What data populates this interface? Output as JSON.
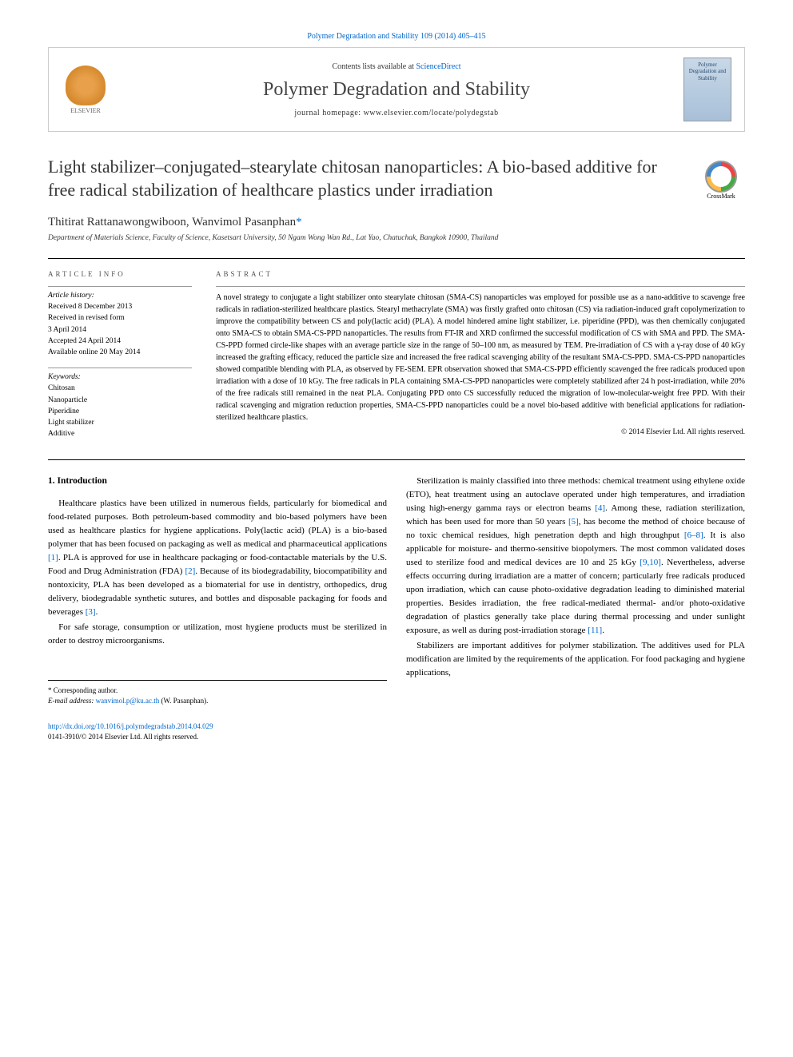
{
  "citation": "Polymer Degradation and Stability 109 (2014) 405–415",
  "masthead": {
    "contents_prefix": "Contents lists available at ",
    "contents_link": "ScienceDirect",
    "journal_name": "Polymer Degradation and Stability",
    "homepage_prefix": "journal homepage: ",
    "homepage_url": "www.elsevier.com/locate/polydegstab",
    "publisher": "ELSEVIER",
    "cover_text": "Polymer Degradation and Stability"
  },
  "crossmark": "CrossMark",
  "title": "Light stabilizer–conjugated–stearylate chitosan nanoparticles: A bio-based additive for free radical stabilization of healthcare plastics under irradiation",
  "authors_line": "Thitirat Rattanawongwiboon, Wanvimol Pasanphan",
  "corr_marker": "*",
  "affiliation": "Department of Materials Science, Faculty of Science, Kasetsart University, 50 Ngam Wong Wan Rd., Lat Yao, Chatuchak, Bangkok 10900, Thailand",
  "article_info": {
    "label": "article info",
    "history_label": "Article history:",
    "history": [
      "Received 8 December 2013",
      "Received in revised form",
      "3 April 2014",
      "Accepted 24 April 2014",
      "Available online 20 May 2014"
    ],
    "keywords_label": "Keywords:",
    "keywords": [
      "Chitosan",
      "Nanoparticle",
      "Piperidine",
      "Light stabilizer",
      "Additive"
    ]
  },
  "abstract": {
    "label": "abstract",
    "text": "A novel strategy to conjugate a light stabilizer onto stearylate chitosan (SMA-CS) nanoparticles was employed for possible use as a nano-additive to scavenge free radicals in radiation-sterilized healthcare plastics. Stearyl methacrylate (SMA) was firstly grafted onto chitosan (CS) via radiation-induced graft copolymerization to improve the compatibility between CS and poly(lactic acid) (PLA). A model hindered amine light stabilizer, i.e. piperidine (PPD), was then chemically conjugated onto SMA-CS to obtain SMA-CS-PPD nanoparticles. The results from FT-IR and XRD confirmed the successful modification of CS with SMA and PPD. The SMA-CS-PPD formed circle-like shapes with an average particle size in the range of 50–100 nm, as measured by TEM. Pre-irradiation of CS with a γ-ray dose of 40 kGy increased the grafting efficacy, reduced the particle size and increased the free radical scavenging ability of the resultant SMA-CS-PPD. SMA-CS-PPD nanoparticles showed compatible blending with PLA, as observed by FE-SEM. EPR observation showed that SMA-CS-PPD efficiently scavenged the free radicals produced upon irradiation with a dose of 10 kGy. The free radicals in PLA containing SMA-CS-PPD nanoparticles were completely stabilized after 24 h post-irradiation, while 20% of the free radicals still remained in the neat PLA. Conjugating PPD onto CS successfully reduced the migration of low-molecular-weight free PPD. With their radical scavenging and migration reduction properties, SMA-CS-PPD nanoparticles could be a novel bio-based additive with beneficial applications for radiation-sterilized healthcare plastics.",
    "copyright": "© 2014 Elsevier Ltd. All rights reserved."
  },
  "body": {
    "section1_heading": "1. Introduction",
    "para1": "Healthcare plastics have been utilized in numerous fields, particularly for biomedical and food-related purposes. Both petroleum-based commodity and bio-based polymers have been used as healthcare plastics for hygiene applications. Poly(lactic acid) (PLA) is a bio-based polymer that has been focused on packaging as well as medical and pharmaceutical applications [1]. PLA is approved for use in healthcare packaging or food-contactable materials by the U.S. Food and Drug Administration (FDA) [2]. Because of its biodegradability, biocompatibility and nontoxicity, PLA has been developed as a biomaterial for use in dentistry, orthopedics, drug delivery, biodegradable synthetic sutures, and bottles and disposable packaging for foods and beverages [3].",
    "para2": "For safe storage, consumption or utilization, most hygiene products must be sterilized in order to destroy microorganisms.",
    "para3": "Sterilization is mainly classified into three methods: chemical treatment using ethylene oxide (ETO), heat treatment using an autoclave operated under high temperatures, and irradiation using high-energy gamma rays or electron beams [4]. Among these, radiation sterilization, which has been used for more than 50 years [5], has become the method of choice because of no toxic chemical residues, high penetration depth and high throughput [6–8]. It is also applicable for moisture- and thermo-sensitive biopolymers. The most common validated doses used to sterilize food and medical devices are 10 and 25 kGy [9,10]. Nevertheless, adverse effects occurring during irradiation are a matter of concern; particularly free radicals produced upon irradiation, which can cause photo-oxidative degradation leading to diminished material properties. Besides irradiation, the free radical-mediated thermal- and/or photo-oxidative degradation of plastics generally take place during thermal processing and under sunlight exposure, as well as during post-irradiation storage [11].",
    "para4": "Stabilizers are important additives for polymer stabilization. The additives used for PLA modification are limited by the requirements of the application. For food packaging and hygiene applications,"
  },
  "footnote": {
    "corr": "* Corresponding author.",
    "email_label": "E-mail address: ",
    "email": "wanvimol.p@ku.ac.th",
    "email_suffix": " (W. Pasanphan)."
  },
  "footer": {
    "doi": "http://dx.doi.org/10.1016/j.polymdegradstab.2014.04.029",
    "issn_line": "0141-3910/© 2014 Elsevier Ltd. All rights reserved."
  },
  "colors": {
    "link": "#0066cc",
    "text": "#000000",
    "rule": "#000000"
  }
}
